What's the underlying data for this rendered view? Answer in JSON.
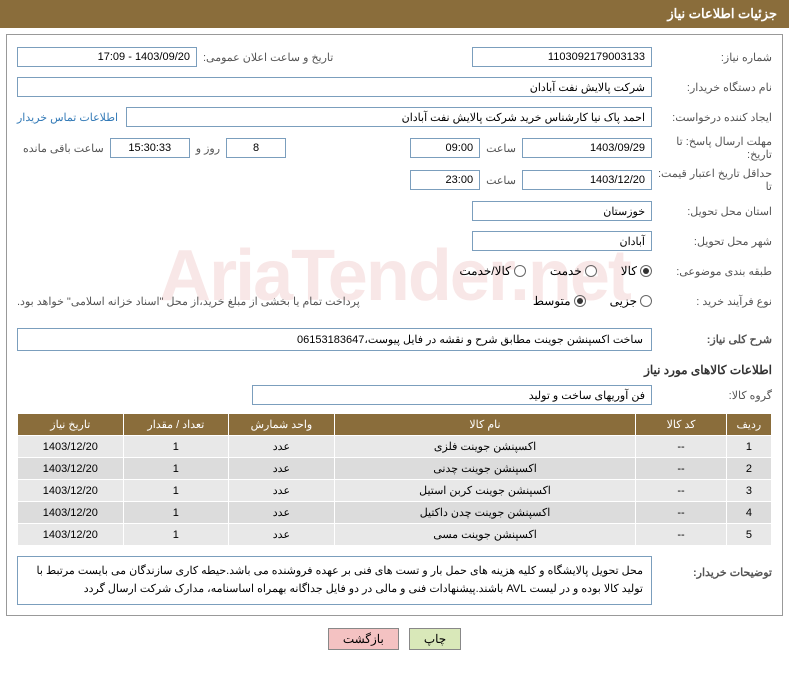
{
  "header": {
    "title": "جزئیات اطلاعات نیاز"
  },
  "labels": {
    "need_number": "شماره نیاز:",
    "announce_datetime": "تاریخ و ساعت اعلان عمومی:",
    "buyer_org": "نام دستگاه خریدار:",
    "requester": "ایجاد کننده درخواست:",
    "contact_link": "اطلاعات تماس خریدار",
    "response_deadline": "مهلت ارسال پاسخ: تا تاریخ:",
    "time": "ساعت",
    "days_and": "روز و",
    "time_remaining": "ساعت باقی مانده",
    "price_validity": "حداقل تاریخ اعتبار قیمت: تا",
    "delivery_province": "استان محل تحویل:",
    "delivery_city": "شهر محل تحویل:",
    "category": "طبقه بندی موضوعی:",
    "purchase_type": "نوع فرآیند خرید :",
    "purchase_note": "پرداخت تمام یا بخشی از مبلغ خرید،از محل \"اسناد خزانه اسلامی\" خواهد بود.",
    "overall_desc": "شرح کلی نیاز:",
    "goods_info": "اطلاعات کالاهای مورد نیاز",
    "goods_group": "گروه کالا:",
    "buyer_notes": "توضیحات خریدار:"
  },
  "fields": {
    "need_number": "1103092179003133",
    "announce_datetime": "1403/09/20 - 17:09",
    "buyer_org": "شرکت پالایش نفت آبادان",
    "requester": "احمد پاک نیا کارشناس خرید شرکت پالایش نفت آبادان",
    "response_date": "1403/09/29",
    "response_time": "09:00",
    "days_remaining": "8",
    "countdown": "15:30:33",
    "price_validity_date": "1403/12/20",
    "price_validity_time": "23:00",
    "province": "خوزستان",
    "city": "آبادان",
    "overall_desc": "ساخت اکسپنشن جوینت مطابق شرح و نقشه در فایل پیوست،06153183647",
    "goods_group": "فن آوریهای ساخت و تولید",
    "buyer_notes": "محل تحویل پالایشگاه و کلیه هزینه های حمل بار و تست های فنی بر عهده فروشنده می باشد.حیطه کاری سازندگان می بایست مرتبط با تولید کالا بوده و در لیست AVL باشند.پیشنهادات فنی و مالی در دو فایل جداگانه بهمراه اساسنامه، مدارک شرکت ارسال گردد"
  },
  "radios": {
    "category": {
      "options": [
        {
          "label": "کالا",
          "checked": true
        },
        {
          "label": "خدمت",
          "checked": false
        },
        {
          "label": "کالا/خدمت",
          "checked": false
        }
      ]
    },
    "purchase": {
      "options": [
        {
          "label": "جزیی",
          "checked": false
        },
        {
          "label": "متوسط",
          "checked": true
        }
      ]
    }
  },
  "table": {
    "columns": [
      "ردیف",
      "کد کالا",
      "نام کالا",
      "واحد شمارش",
      "تعداد / مقدار",
      "تاریخ نیاز"
    ],
    "widths": [
      "6%",
      "12%",
      "40%",
      "14%",
      "14%",
      "14%"
    ],
    "rows": [
      [
        "1",
        "--",
        "اکسپنشن جوینت فلزی",
        "عدد",
        "1",
        "1403/12/20"
      ],
      [
        "2",
        "--",
        "اکسپنشن جوینت چدنی",
        "عدد",
        "1",
        "1403/12/20"
      ],
      [
        "3",
        "--",
        "اکسپنشن جوینت کربن استیل",
        "عدد",
        "1",
        "1403/12/20"
      ],
      [
        "4",
        "--",
        "اکسپنشن جوینت چدن داکتیل",
        "عدد",
        "1",
        "1403/12/20"
      ],
      [
        "5",
        "--",
        "اکسپنشن جوینت مسی",
        "عدد",
        "1",
        "1403/12/20"
      ]
    ]
  },
  "buttons": {
    "print": "چاپ",
    "back": "بازگشت"
  },
  "watermark": "AriaTender.net",
  "colors": {
    "header_bg": "#8a6d3b",
    "border": "#7b9ebd"
  }
}
